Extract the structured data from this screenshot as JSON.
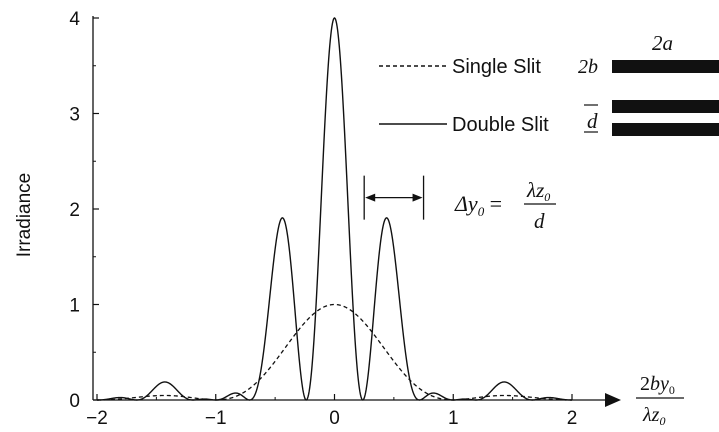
{
  "chart_data": {
    "type": "line",
    "ylabel": "Irradiance",
    "xlabel_parts": {
      "num_a": "2",
      "num_b": "by",
      "num_sub": "0",
      "den_a": "λz",
      "den_sub": "0"
    },
    "xlim": [
      -2,
      2.35
    ],
    "ylim": [
      0,
      4
    ],
    "xticks": [
      -2,
      -1,
      0,
      1,
      2
    ],
    "yticks": [
      0,
      1,
      2,
      3,
      4
    ],
    "xtick_labels": [
      "−2",
      "−1",
      "0",
      "1",
      "2"
    ],
    "ytick_labels": [
      "0",
      "1",
      "2",
      "3",
      "4"
    ],
    "grid": false,
    "legend_placement": "top-right",
    "series": [
      {
        "name": "Single Slit",
        "style": "dashed",
        "color": "#111111",
        "model": "sinc2",
        "points": [
          [
            -2,
            0.0
          ],
          [
            -1.5,
            0.045
          ],
          [
            -1,
            0.0
          ],
          [
            -0.5,
            0.405
          ],
          [
            0,
            1.0
          ],
          [
            0.5,
            0.405
          ],
          [
            1,
            0.0
          ],
          [
            1.5,
            0.045
          ],
          [
            2,
            0.0
          ]
        ]
      },
      {
        "name": "Double Slit",
        "style": "solid",
        "color": "#111111",
        "model": "4sinc2cos2",
        "points": [
          [
            -1.5,
            0.18
          ],
          [
            -0.47,
            1.75
          ],
          [
            0,
            4.0
          ],
          [
            0.47,
            1.75
          ],
          [
            1.5,
            0.18
          ]
        ]
      }
    ],
    "annotations": {
      "formula": {
        "lhs": "Δy",
        "lhs_sub": "0",
        "num_a": "λz",
        "num_sub": "0",
        "den": "d"
      },
      "arrow_x_range": [
        0.25,
        0.75
      ],
      "arrow_y": 1.7,
      "slit_labels": {
        "width": "2a",
        "height": "2b",
        "separation": "d"
      }
    }
  }
}
